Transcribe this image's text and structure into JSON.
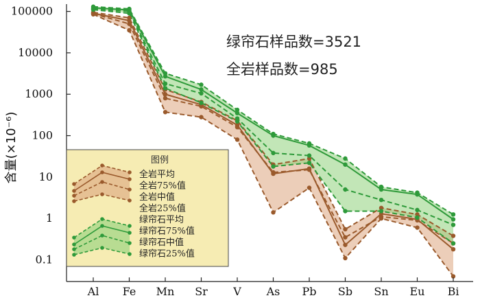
{
  "chart_data": {
    "type": "line",
    "categories": [
      "Al",
      "Fe",
      "Mn",
      "Sr",
      "V",
      "As",
      "Pb",
      "Sb",
      "Sn",
      "Eu",
      "Bi"
    ],
    "ylabel": "含量(×10⁻⁶)",
    "yscale": "log",
    "ylim": [
      0.03,
      150000
    ],
    "yticks": [
      {
        "value": 100000,
        "label": "100000"
      },
      {
        "value": 10000,
        "label": "10000"
      },
      {
        "value": 1000,
        "label": "1000"
      },
      {
        "value": 100,
        "label": "100"
      },
      {
        "value": 10,
        "label": "10"
      },
      {
        "value": 1,
        "label": "1"
      },
      {
        "value": 0.1,
        "label": "0.1"
      }
    ],
    "annotations": [
      "绿帘石样品数=3521",
      "全岩样品数=985"
    ],
    "legend": {
      "title": "图例",
      "items": [
        "全岩平均",
        "全岩75%值",
        "全岩中值",
        "全岩25%值",
        "绿帘石平均",
        "绿帘石75%值",
        "绿帘石中值",
        "绿帘石25%值"
      ]
    },
    "groups": [
      {
        "key": "whole_rock",
        "color": "#9a5a2c",
        "fill": "#dca57f",
        "series": [
          {
            "name": "全岩75%值",
            "role": "p75",
            "values": [
              95000,
              70000,
              1300,
              650,
              230,
              20,
              28,
              0.55,
              1.8,
              1.25,
              0.38
            ]
          },
          {
            "name": "全岩平均",
            "role": "mean",
            "values": [
              90000,
              60000,
              1000,
              560,
              180,
              12,
              16,
              0.23,
              1.3,
              0.95,
              0.18
            ]
          },
          {
            "name": "全岩中值",
            "role": "median",
            "values": [
              88000,
              50000,
              800,
              510,
              160,
              13,
              15,
              0.35,
              1.1,
              0.9,
              0.25
            ]
          },
          {
            "name": "全岩25%值",
            "role": "p25",
            "values": [
              85000,
              35000,
              370,
              280,
              80,
              1.4,
              5.5,
              0.11,
              1.0,
              0.6,
              0.04
            ]
          }
        ]
      },
      {
        "key": "epidote",
        "color": "#2e9a3a",
        "fill": "#8fd27c",
        "series": [
          {
            "name": "绿帘石75%值",
            "role": "p75",
            "values": [
              130000,
              115000,
              3200,
              1700,
              420,
              110,
              65,
              28,
              5.8,
              4.2,
              1.25
            ]
          },
          {
            "name": "绿帘石平均",
            "role": "mean",
            "values": [
              122000,
              108000,
              2700,
              1300,
              350,
              100,
              58,
              20,
              5.0,
              3.8,
              0.95
            ]
          },
          {
            "name": "绿帘石中值",
            "role": "median",
            "values": [
              115000,
              100000,
              1800,
              1050,
              260,
              38,
              33,
              5.0,
              2.8,
              1.6,
              0.7
            ]
          },
          {
            "name": "绿帘石25%值",
            "role": "p25",
            "values": [
              110000,
              90000,
              1400,
              620,
              220,
              18,
              22,
              1.5,
              1.5,
              1.05,
              0.25
            ]
          }
        ]
      }
    ]
  }
}
